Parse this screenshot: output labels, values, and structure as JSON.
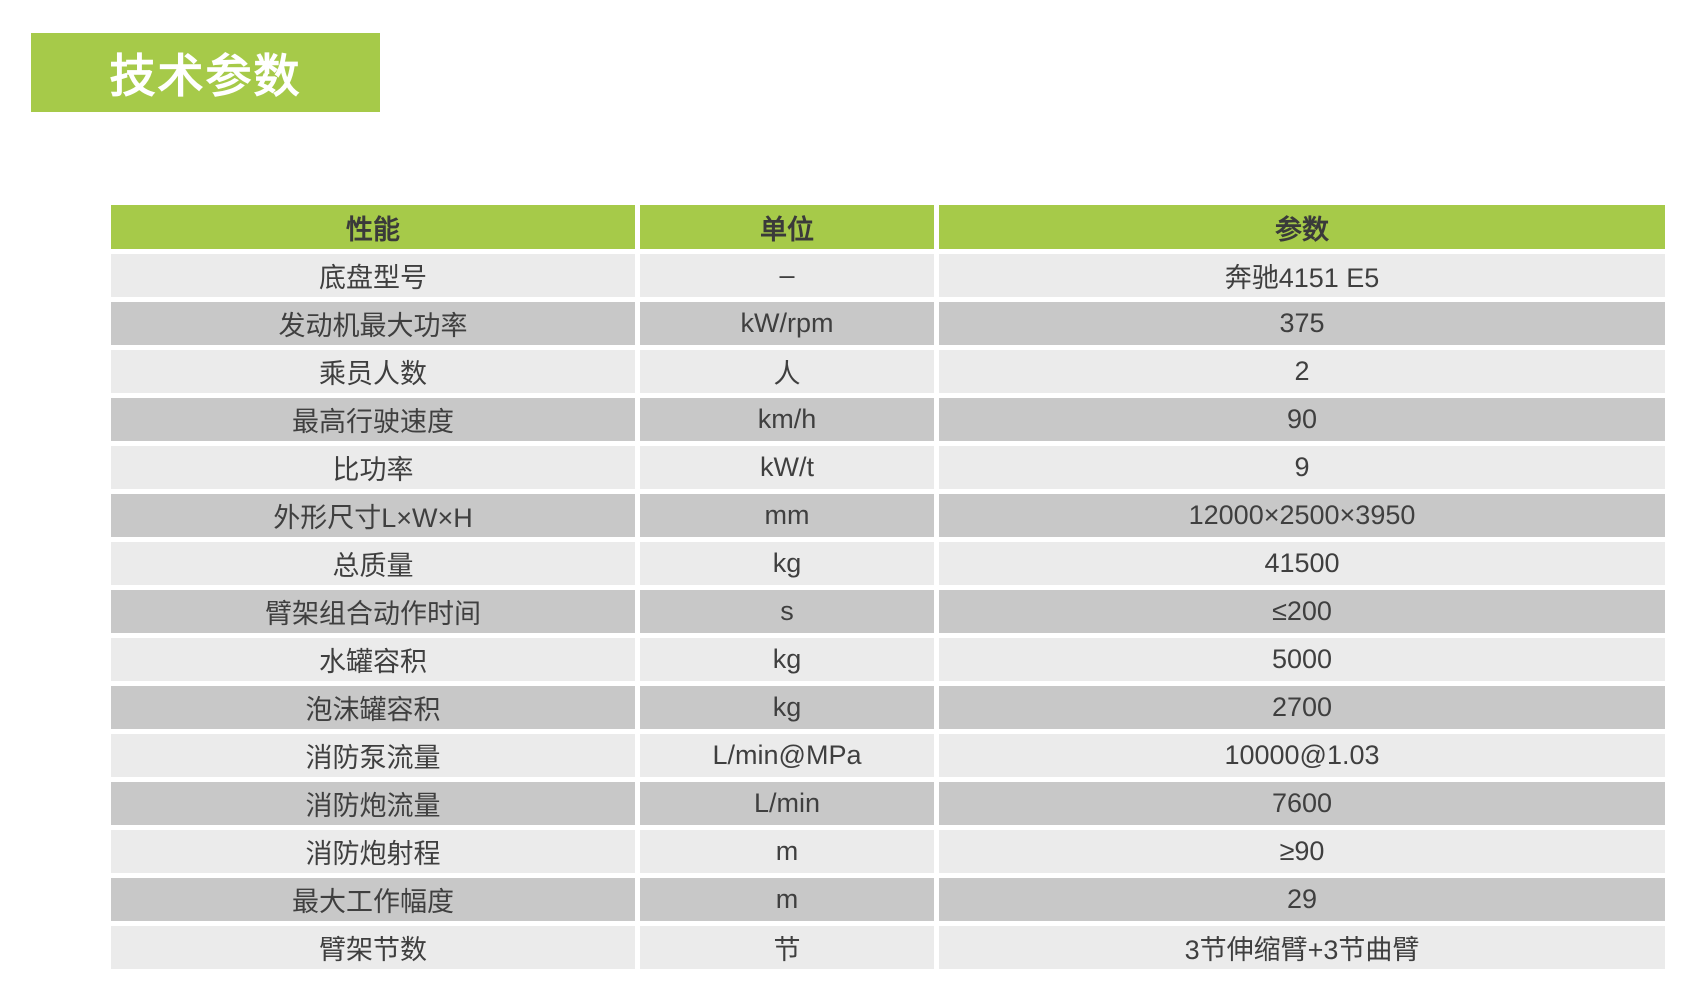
{
  "section": {
    "title": "技术参数"
  },
  "table": {
    "headers": {
      "performance": "性能",
      "unit": "单位",
      "parameter": "参数"
    },
    "rows": [
      {
        "name": "底盘型号",
        "unit": "–",
        "value": "奔驰4151 E5"
      },
      {
        "name": "发动机最大功率",
        "unit": "kW/rpm",
        "value": "375"
      },
      {
        "name": "乘员人数",
        "unit": "人",
        "value": "2"
      },
      {
        "name": "最高行驶速度",
        "unit": "km/h",
        "value": "90"
      },
      {
        "name": "比功率",
        "unit": "kW/t",
        "value": "9"
      },
      {
        "name": "外形尺寸L×W×H",
        "unit": "mm",
        "value": "12000×2500×3950"
      },
      {
        "name": "总质量",
        "unit": "kg",
        "value": "41500"
      },
      {
        "name": "臂架组合动作时间",
        "unit": "s",
        "value": "≤200"
      },
      {
        "name": "水罐容积",
        "unit": "kg",
        "value": "5000"
      },
      {
        "name": "泡沫罐容积",
        "unit": "kg",
        "value": "2700"
      },
      {
        "name": "消防泵流量",
        "unit": "L/min@MPa",
        "value": "10000@1.03"
      },
      {
        "name": "消防炮流量",
        "unit": "L/min",
        "value": "7600"
      },
      {
        "name": "消防炮射程",
        "unit": "m",
        "value": "≥90"
      },
      {
        "name": "最大工作幅度",
        "unit": "m",
        "value": "29"
      },
      {
        "name": "臂架节数",
        "unit": "节",
        "value": "3节伸缩臂+3节曲臂"
      }
    ]
  },
  "colors": {
    "accent_green": "#a6ca49",
    "row_light": "#ebebeb",
    "row_dark": "#c8c8c8",
    "text": "#3f3f3f"
  }
}
